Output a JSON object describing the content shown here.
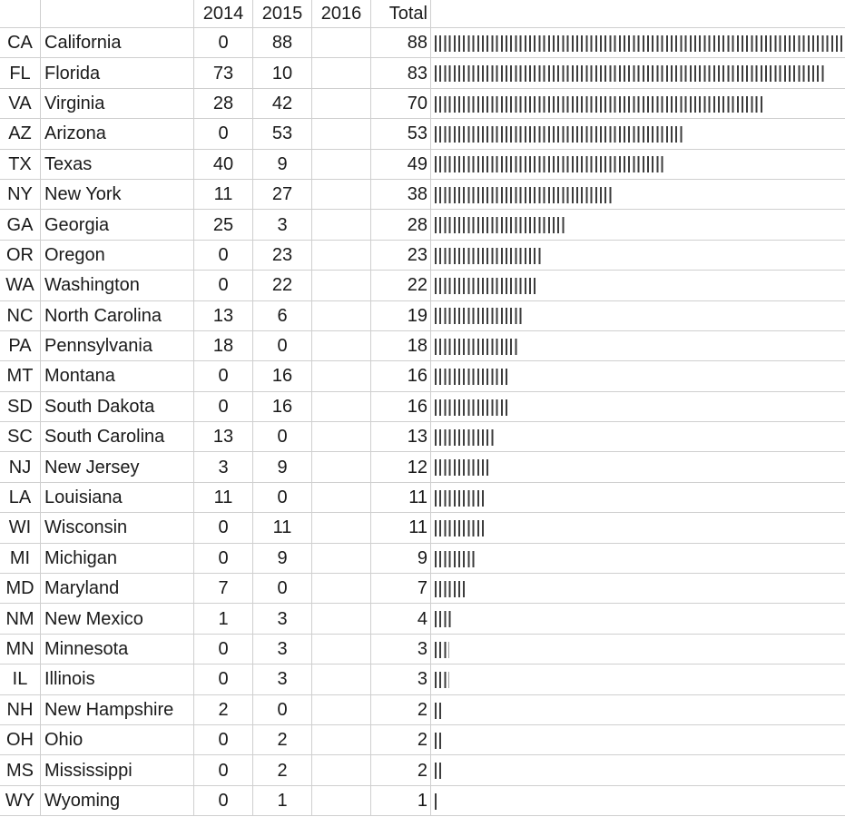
{
  "header": {
    "code": "",
    "name": "",
    "y2014": "2014",
    "y2015": "2015",
    "y2016": "2016",
    "total": "Total",
    "bar": ""
  },
  "rows": [
    {
      "code": "CA",
      "name": "California",
      "y2014": "0",
      "y2015": "88",
      "y2016": "",
      "total": "88",
      "value": 88
    },
    {
      "code": "FL",
      "name": "Florida",
      "y2014": "73",
      "y2015": "10",
      "y2016": "",
      "total": "83",
      "value": 83
    },
    {
      "code": "VA",
      "name": "Virginia",
      "y2014": "28",
      "y2015": "42",
      "y2016": "",
      "total": "70",
      "value": 70
    },
    {
      "code": "AZ",
      "name": "Arizona",
      "y2014": "0",
      "y2015": "53",
      "y2016": "",
      "total": "53",
      "value": 53
    },
    {
      "code": "TX",
      "name": "Texas",
      "y2014": "40",
      "y2015": "9",
      "y2016": "",
      "total": "49",
      "value": 49
    },
    {
      "code": "NY",
      "name": "New York",
      "y2014": "11",
      "y2015": "27",
      "y2016": "",
      "total": "38",
      "value": 38
    },
    {
      "code": "GA",
      "name": "Georgia",
      "y2014": "25",
      "y2015": "3",
      "y2016": "",
      "total": "28",
      "value": 28
    },
    {
      "code": "OR",
      "name": "Oregon",
      "y2014": "0",
      "y2015": "23",
      "y2016": "",
      "total": "23",
      "value": 23
    },
    {
      "code": "WA",
      "name": "Washington",
      "y2014": "0",
      "y2015": "22",
      "y2016": "",
      "total": "22",
      "value": 22
    },
    {
      "code": "NC",
      "name": "North Carolina",
      "y2014": "13",
      "y2015": "6",
      "y2016": "",
      "total": "19",
      "value": 19
    },
    {
      "code": "PA",
      "name": "Pennsylvania",
      "y2014": "18",
      "y2015": "0",
      "y2016": "",
      "total": "18",
      "value": 18
    },
    {
      "code": "MT",
      "name": "Montana",
      "y2014": "0",
      "y2015": "16",
      "y2016": "",
      "total": "16",
      "value": 16
    },
    {
      "code": "SD",
      "name": "South Dakota",
      "y2014": "0",
      "y2015": "16",
      "y2016": "",
      "total": "16",
      "value": 16
    },
    {
      "code": "SC",
      "name": "South Carolina",
      "y2014": "13",
      "y2015": "0",
      "y2016": "",
      "total": "13",
      "value": 13
    },
    {
      "code": "NJ",
      "name": "New Jersey",
      "y2014": "3",
      "y2015": "9",
      "y2016": "",
      "total": "12",
      "value": 12
    },
    {
      "code": "LA",
      "name": "Louisiana",
      "y2014": "11",
      "y2015": "0",
      "y2016": "",
      "total": "11",
      "value": 11
    },
    {
      "code": "WI",
      "name": "Wisconsin",
      "y2014": "0",
      "y2015": "11",
      "y2016": "",
      "total": "11",
      "value": 11
    },
    {
      "code": "MI",
      "name": "Michigan",
      "y2014": "0",
      "y2015": "9",
      "y2016": "",
      "total": "9",
      "value": 9
    },
    {
      "code": "MD",
      "name": "Maryland",
      "y2014": "7",
      "y2015": "0",
      "y2016": "",
      "total": "7",
      "value": 7
    },
    {
      "code": "NM",
      "name": "New Mexico",
      "y2014": "1",
      "y2015": "3",
      "y2016": "",
      "total": "4",
      "value": 4
    },
    {
      "code": "MN",
      "name": "Minnesota",
      "y2014": "0",
      "y2015": "3",
      "y2016": "",
      "total": "3",
      "value": 3
    },
    {
      "code": "IL",
      "name": "Illinois",
      "y2014": "0",
      "y2015": "3",
      "y2016": "",
      "total": "3",
      "value": 3
    },
    {
      "code": "NH",
      "name": "New Hampshire",
      "y2014": "2",
      "y2015": "0",
      "y2016": "",
      "total": "2",
      "value": 2
    },
    {
      "code": "OH",
      "name": "Ohio",
      "y2014": "0",
      "y2015": "2",
      "y2016": "",
      "total": "2",
      "value": 2
    },
    {
      "code": "MS",
      "name": "Mississippi",
      "y2014": "0",
      "y2015": "2",
      "y2016": "",
      "total": "2",
      "value": 2
    },
    {
      "code": "WY",
      "name": "Wyoming",
      "y2014": "0",
      "y2015": "1",
      "y2016": "",
      "total": "1",
      "value": 1
    }
  ],
  "colors": {
    "bar": "#3d3d3d",
    "grid": "#cfcfcf",
    "text": "#1a1a1a"
  }
}
